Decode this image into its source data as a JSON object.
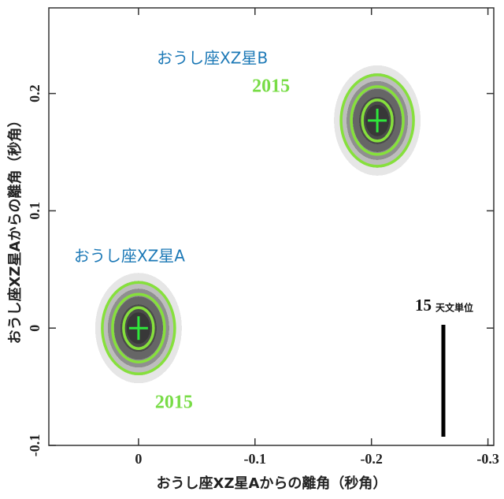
{
  "chart_data": {
    "type": "scatter",
    "xlabel": "おうし座XZ星Aからの離角（秒角）",
    "ylabel": "おうし座XZ星Aからの離角（秒角）",
    "xlim": [
      0.077,
      -0.305
    ],
    "ylim": [
      -0.1,
      0.273
    ],
    "xticks": [
      0,
      -0.1,
      -0.2,
      -0.3
    ],
    "yticks": [
      -0.1,
      0,
      0.1,
      0.2
    ],
    "series": [
      {
        "name": "おうし座XZ星A",
        "year": "2015",
        "color": "#86e03c",
        "x": [
          0
        ],
        "y": [
          0
        ]
      },
      {
        "name": "おうし座XZ星B",
        "year": "2015",
        "color": "#86e03c",
        "x": [
          -0.205
        ],
        "y": [
          0.177
        ]
      }
    ],
    "scale_bar": {
      "value": 15,
      "unit": "天文単位"
    }
  }
}
